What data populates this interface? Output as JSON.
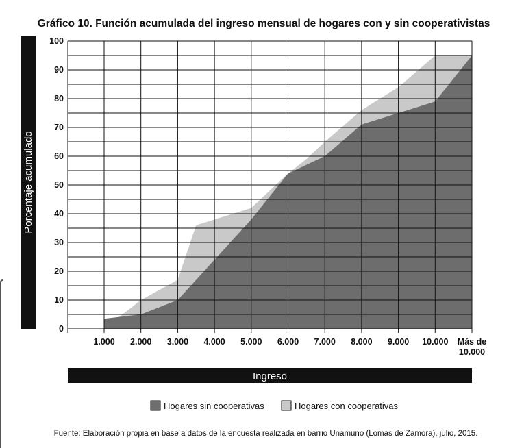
{
  "chart_data": {
    "type": "area",
    "title": "Gráfico 10. Función acumulada del ingreso mensual de hogares con y sin cooperativistas",
    "xlabel": "Ingreso",
    "ylabel": "Porcentaje acumulado",
    "categories": [
      "1.000",
      "2.000",
      "3.000",
      "4.000",
      "5.000",
      "6.000",
      "7.000",
      "8.000",
      "9.000",
      "10.000",
      "Más de 10.000"
    ],
    "y_ticks": [
      0,
      10,
      20,
      30,
      40,
      50,
      60,
      70,
      80,
      90,
      100
    ],
    "ylim": [
      0,
      100
    ],
    "grid": true,
    "legend_position": "bottom",
    "series": [
      {
        "name": "Hogares con cooperativas",
        "color": "#c9c9c9",
        "points": [
          [
            1,
            0
          ],
          [
            2,
            10
          ],
          [
            3,
            17
          ],
          [
            3.5,
            36
          ],
          [
            4,
            38
          ],
          [
            5,
            42
          ],
          [
            6,
            54
          ],
          [
            6.5,
            59
          ],
          [
            7,
            65
          ],
          [
            8,
            76
          ],
          [
            9,
            84
          ],
          [
            10,
            95
          ],
          [
            11,
            95
          ]
        ]
      },
      {
        "name": "Hogares sin cooperativas",
        "color": "#6d6d6d",
        "points": [
          [
            1,
            3.5
          ],
          [
            2,
            5
          ],
          [
            3,
            10
          ],
          [
            4,
            24
          ],
          [
            5,
            38
          ],
          [
            6,
            54
          ],
          [
            7,
            60
          ],
          [
            8,
            71
          ],
          [
            9,
            75
          ],
          [
            10,
            79
          ],
          [
            11,
            95
          ]
        ]
      }
    ],
    "source": "Fuente: Elaboración propia en base a datos de la encuesta realizada en barrio Unamuno (Lomas de Zamora), julio, 2015."
  }
}
